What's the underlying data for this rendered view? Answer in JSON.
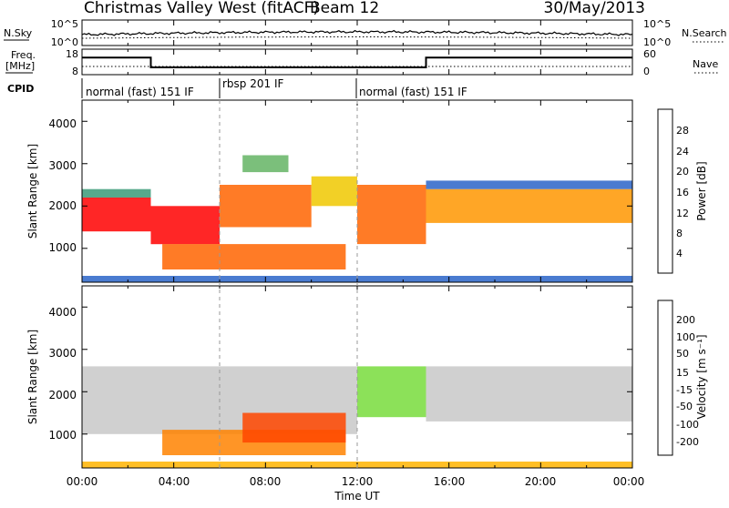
{
  "header": {
    "station": "Christmas Valley West (fitACF)",
    "beam": "Beam 12",
    "date": "30/May/2013"
  },
  "noise_panel": {
    "left_label": "N.Sky",
    "right_label": "N.Search",
    "left_ticks": [
      "10^5",
      "10^0"
    ],
    "right_ticks": [
      "10^5",
      "10^0"
    ]
  },
  "freq_panel": {
    "left_label_line1": "Freq.",
    "left_label_line2": "[MHz]",
    "right_label": "Nave",
    "left_ticks": [
      "18",
      "8"
    ],
    "right_ticks": [
      "60",
      "0"
    ]
  },
  "cpid": {
    "label": "CPID",
    "segments": [
      {
        "text": "normal (fast) 151 IF",
        "start_hour": 0
      },
      {
        "text": "rbsp 201 IF",
        "start_hour": 6
      },
      {
        "text": "normal (fast) 151 IF",
        "start_hour": 12
      }
    ]
  },
  "power_panel": {
    "ylabel": "Slant Range [km]",
    "yticks": [
      "1000",
      "2000",
      "3000",
      "4000"
    ],
    "colorbar_label": "Power [dB]",
    "colorbar_ticks": [
      "28",
      "24",
      "20",
      "16",
      "12",
      "8",
      "4"
    ],
    "colors": [
      "#0000e6",
      "#2a64c8",
      "#3a9a78",
      "#64b464",
      "#a0c83c",
      "#f0c800",
      "#ff9600",
      "#ff6400",
      "#ff0000"
    ]
  },
  "velocity_panel": {
    "ylabel": "Slant Range [km]",
    "yticks": [
      "1000",
      "2000",
      "3000",
      "4000"
    ],
    "colorbar_label": "Velocity [m s⁻¹]",
    "colorbar_ticks": [
      "200",
      "100",
      "50",
      "15",
      "-15",
      "-50",
      "-100",
      "-200"
    ],
    "colors": [
      "#1e28c8",
      "#2860a0",
      "#287848",
      "#78dc3c",
      "#c8c8c8",
      "#ffb400",
      "#ff8200",
      "#ff4600",
      "#ff0000"
    ]
  },
  "time_axis": {
    "label": "Time UT",
    "ticks": [
      "00:00",
      "04:00",
      "08:00",
      "12:00",
      "16:00",
      "20:00",
      "00:00"
    ]
  },
  "chart_data": [
    {
      "type": "line",
      "title": "",
      "xlabel": "",
      "ylabel": "N.Sky",
      "x_range_hours": [
        0,
        24
      ],
      "y_scale": "log",
      "note_series": [
        "N.Sky",
        "N.Search"
      ]
    },
    {
      "type": "line",
      "xlabel": "",
      "ylabel": "Freq. [MHz]",
      "ylim": [
        8,
        18
      ],
      "series": [
        {
          "name": "Freq.",
          "x_hours": [
            0,
            3,
            3,
            15,
            15,
            24
          ],
          "values": [
            15,
            15,
            10.5,
            10.5,
            15,
            15
          ]
        }
      ]
    },
    {
      "type": "heatmap",
      "ylabel": "Slant Range [km]",
      "ylim": [
        200,
        4500
      ],
      "xlim_hours": [
        0,
        24
      ],
      "colorbar": "Power [dB]",
      "scale": [
        0,
        30
      ]
    },
    {
      "type": "heatmap",
      "ylabel": "Slant Range [km]",
      "ylim": [
        200,
        4500
      ],
      "xlim_hours": [
        0,
        24
      ],
      "colorbar": "Velocity [m s⁻¹]",
      "scale": [
        -200,
        200
      ]
    }
  ]
}
